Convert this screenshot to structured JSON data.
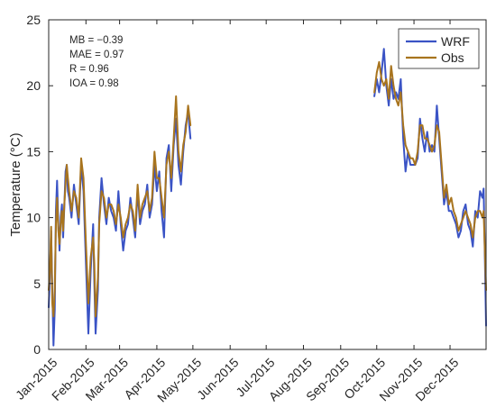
{
  "chart_data": {
    "type": "line",
    "ylabel": "Temperature (°C)",
    "xlabel": "",
    "ylim": [
      0,
      25
    ],
    "yticks": [
      0,
      5,
      10,
      15,
      20,
      25
    ],
    "xlim": [
      "2015-01-01",
      "2015-12-31"
    ],
    "xticks": [
      {
        "date": "2015-01-01",
        "label": "Jan-2015"
      },
      {
        "date": "2015-02-01",
        "label": "Feb-2015"
      },
      {
        "date": "2015-03-01",
        "label": "Mar-2015"
      },
      {
        "date": "2015-04-01",
        "label": "Apr-2015"
      },
      {
        "date": "2015-05-01",
        "label": "May-2015"
      },
      {
        "date": "2015-06-01",
        "label": "Jun-2015"
      },
      {
        "date": "2015-07-01",
        "label": "Jul-2015"
      },
      {
        "date": "2015-08-01",
        "label": "Aug-2015"
      },
      {
        "date": "2015-09-01",
        "label": "Sep-2015"
      },
      {
        "date": "2015-10-01",
        "label": "Oct-2015"
      },
      {
        "date": "2015-11-01",
        "label": "Nov-2015"
      },
      {
        "date": "2015-12-01",
        "label": "Dec-2015"
      }
    ],
    "grid": false,
    "legend_position": "top-right",
    "stats": [
      "MB = −0.39",
      "MAE = 0.97",
      "R = 0.96",
      "IOA = 0.98"
    ],
    "series": [
      {
        "name": "WRF",
        "color": "#3A53C5",
        "segments": [
          {
            "x": [
              "2015-01-01",
              "2015-01-02",
              "2015-01-03",
              "2015-01-04",
              "2015-01-05",
              "2015-01-06",
              "2015-01-07",
              "2015-01-08",
              "2015-01-09",
              "2015-01-10",
              "2015-01-11",
              "2015-01-12",
              "2015-01-13",
              "2015-01-14",
              "2015-01-15",
              "2015-01-16",
              "2015-01-17",
              "2015-01-18",
              "2015-01-20",
              "2015-01-22",
              "2015-01-24",
              "2015-01-26",
              "2015-01-28",
              "2015-01-30",
              "2015-02-01",
              "2015-02-03",
              "2015-02-05",
              "2015-02-07",
              "2015-02-08",
              "2015-02-09",
              "2015-02-11",
              "2015-02-12",
              "2015-02-14",
              "2015-02-16",
              "2015-02-18",
              "2015-02-20",
              "2015-02-22",
              "2015-02-24",
              "2015-02-26",
              "2015-02-28",
              "2015-03-02",
              "2015-03-04",
              "2015-03-06",
              "2015-03-08",
              "2015-03-10",
              "2015-03-12",
              "2015-03-14",
              "2015-03-16",
              "2015-03-18",
              "2015-03-20",
              "2015-03-22",
              "2015-03-24",
              "2015-03-26",
              "2015-03-28",
              "2015-03-30",
              "2015-04-01",
              "2015-04-03",
              "2015-04-05",
              "2015-04-07",
              "2015-04-09",
              "2015-04-11",
              "2015-04-13",
              "2015-04-15",
              "2015-04-17",
              "2015-04-19",
              "2015-04-21",
              "2015-04-23",
              "2015-04-25",
              "2015-04-27",
              "2015-04-29"
            ],
            "y": [
              3.2,
              5.5,
              9.0,
              4.5,
              0.3,
              3.0,
              10.5,
              12.8,
              9.5,
              7.5,
              10.0,
              11.0,
              8.5,
              10.8,
              13.5,
              14.0,
              12.0,
              11.5,
              10.0,
              12.5,
              11.0,
              9.5,
              14.0,
              12.0,
              6.5,
              1.2,
              6.0,
              9.5,
              5.0,
              1.2,
              4.5,
              10.0,
              13.0,
              11.0,
              9.5,
              11.5,
              10.5,
              10.0,
              9.0,
              12.0,
              9.5,
              7.5,
              9.0,
              9.5,
              11.5,
              10.0,
              8.5,
              12.0,
              9.5,
              10.5,
              11.0,
              12.5,
              10.0,
              11.0,
              14.0,
              12.0,
              13.5,
              10.5,
              8.5,
              14.5,
              15.5,
              12.0,
              15.5,
              17.5,
              14.0,
              12.5,
              15.0,
              17.0,
              18.0,
              16.0
            ]
          },
          {
            "x": [
              "2015-09-29",
              "2015-10-01",
              "2015-10-03",
              "2015-10-05",
              "2015-10-07",
              "2015-10-09",
              "2015-10-11",
              "2015-10-13",
              "2015-10-15",
              "2015-10-17",
              "2015-10-19",
              "2015-10-21",
              "2015-10-23",
              "2015-10-25",
              "2015-10-27",
              "2015-10-29",
              "2015-10-31",
              "2015-11-02",
              "2015-11-04",
              "2015-11-06",
              "2015-11-08",
              "2015-11-10",
              "2015-11-12",
              "2015-11-14",
              "2015-11-16",
              "2015-11-18",
              "2015-11-20",
              "2015-11-22",
              "2015-11-24",
              "2015-11-26",
              "2015-11-28",
              "2015-11-30",
              "2015-12-02",
              "2015-12-04",
              "2015-12-06",
              "2015-12-08",
              "2015-12-10",
              "2015-12-12",
              "2015-12-14",
              "2015-12-16",
              "2015-12-18",
              "2015-12-20",
              "2015-12-22",
              "2015-12-24",
              "2015-12-26",
              "2015-12-28",
              "2015-12-29",
              "2015-12-31"
            ],
            "y": [
              19.2,
              20.5,
              19.5,
              21.0,
              22.8,
              20.0,
              18.5,
              20.5,
              19.0,
              19.5,
              19.0,
              20.5,
              16.0,
              13.5,
              15.0,
              14.0,
              14.0,
              14.0,
              14.5,
              17.5,
              16.0,
              15.0,
              16.5,
              15.0,
              15.5,
              15.0,
              18.5,
              16.0,
              13.5,
              11.0,
              12.0,
              10.5,
              10.5,
              10.0,
              9.5,
              8.5,
              9.0,
              10.5,
              11.0,
              9.5,
              9.0,
              7.8,
              10.5,
              10.0,
              12.0,
              11.5,
              12.2,
              1.8
            ]
          }
        ]
      },
      {
        "name": "Obs",
        "color": "#A8741E",
        "segments": [
          {
            "x": [
              "2015-01-01",
              "2015-01-02",
              "2015-01-03",
              "2015-01-04",
              "2015-01-05",
              "2015-01-06",
              "2015-01-07",
              "2015-01-08",
              "2015-01-09",
              "2015-01-10",
              "2015-01-11",
              "2015-01-12",
              "2015-01-13",
              "2015-01-14",
              "2015-01-15",
              "2015-01-16",
              "2015-01-17",
              "2015-01-18",
              "2015-01-20",
              "2015-01-22",
              "2015-01-24",
              "2015-01-26",
              "2015-01-28",
              "2015-01-30",
              "2015-02-01",
              "2015-02-03",
              "2015-02-05",
              "2015-02-07",
              "2015-02-08",
              "2015-02-09",
              "2015-02-11",
              "2015-02-12",
              "2015-02-14",
              "2015-02-16",
              "2015-02-18",
              "2015-02-20",
              "2015-02-22",
              "2015-02-24",
              "2015-02-26",
              "2015-02-28",
              "2015-03-02",
              "2015-03-04",
              "2015-03-06",
              "2015-03-08",
              "2015-03-10",
              "2015-03-12",
              "2015-03-14",
              "2015-03-16",
              "2015-03-18",
              "2015-03-20",
              "2015-03-22",
              "2015-03-24",
              "2015-03-26",
              "2015-03-28",
              "2015-03-30",
              "2015-04-01",
              "2015-04-03",
              "2015-04-05",
              "2015-04-07",
              "2015-04-09",
              "2015-04-11",
              "2015-04-13",
              "2015-04-15",
              "2015-04-17",
              "2015-04-19",
              "2015-04-21",
              "2015-04-23",
              "2015-04-25",
              "2015-04-27",
              "2015-04-29"
            ],
            "y": [
              4.5,
              6.0,
              9.3,
              3.5,
              2.5,
              4.5,
              9.5,
              11.5,
              9.0,
              8.0,
              9.5,
              10.5,
              9.0,
              11.0,
              12.5,
              14.0,
              13.0,
              12.0,
              10.5,
              12.0,
              11.5,
              10.0,
              14.5,
              13.0,
              8.0,
              3.5,
              7.0,
              8.5,
              6.5,
              2.5,
              5.5,
              9.5,
              12.0,
              11.5,
              10.0,
              11.0,
              11.0,
              10.5,
              9.5,
              11.0,
              10.0,
              8.5,
              9.5,
              10.0,
              11.0,
              10.5,
              9.0,
              12.5,
              10.0,
              11.0,
              11.5,
              12.0,
              10.5,
              11.5,
              15.0,
              13.0,
              13.0,
              11.5,
              10.0,
              14.0,
              15.0,
              13.0,
              16.0,
              19.2,
              15.0,
              13.5,
              15.5,
              16.5,
              18.5,
              17.0
            ]
          },
          {
            "x": [
              "2015-09-29",
              "2015-10-01",
              "2015-10-03",
              "2015-10-05",
              "2015-10-07",
              "2015-10-09",
              "2015-10-11",
              "2015-10-13",
              "2015-10-15",
              "2015-10-17",
              "2015-10-19",
              "2015-10-21",
              "2015-10-23",
              "2015-10-25",
              "2015-10-27",
              "2015-10-29",
              "2015-10-31",
              "2015-11-02",
              "2015-11-04",
              "2015-11-06",
              "2015-11-08",
              "2015-11-10",
              "2015-11-12",
              "2015-11-14",
              "2015-11-16",
              "2015-11-18",
              "2015-11-20",
              "2015-11-22",
              "2015-11-24",
              "2015-11-26",
              "2015-11-28",
              "2015-11-30",
              "2015-12-02",
              "2015-12-04",
              "2015-12-06",
              "2015-12-08",
              "2015-12-10",
              "2015-12-12",
              "2015-12-14",
              "2015-12-16",
              "2015-12-18",
              "2015-12-20",
              "2015-12-22",
              "2015-12-24",
              "2015-12-26",
              "2015-12-28",
              "2015-12-29",
              "2015-12-31"
            ],
            "y": [
              19.5,
              21.0,
              21.8,
              20.5,
              20.0,
              20.5,
              19.0,
              21.5,
              20.0,
              19.0,
              18.5,
              19.5,
              17.0,
              15.5,
              15.0,
              14.5,
              14.5,
              14.0,
              15.0,
              17.0,
              17.0,
              16.0,
              16.0,
              15.5,
              15.0,
              15.5,
              17.0,
              16.5,
              14.0,
              11.5,
              12.5,
              11.0,
              11.5,
              10.5,
              10.0,
              9.0,
              9.5,
              10.0,
              10.5,
              10.0,
              9.5,
              8.5,
              10.0,
              10.5,
              10.5,
              10.0,
              10.5,
              4.5
            ]
          }
        ]
      }
    ]
  }
}
